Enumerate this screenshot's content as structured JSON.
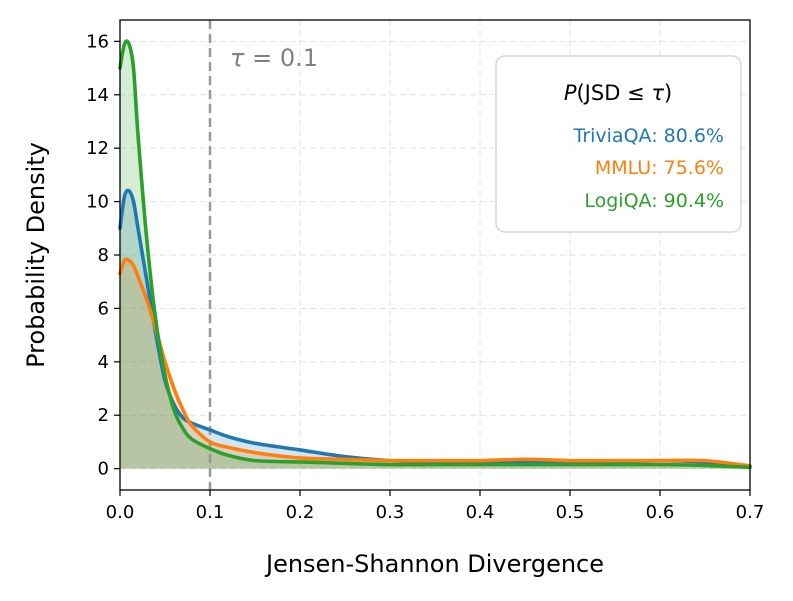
{
  "chart_data": {
    "type": "area",
    "xlabel": "Jensen-Shannon Divergence",
    "ylabel": "Probability Density",
    "xlim": [
      0,
      0.7
    ],
    "ylim": [
      -0.8,
      16.8
    ],
    "xticks": [
      0.0,
      0.1,
      0.2,
      0.3,
      0.4,
      0.5,
      0.6,
      0.7
    ],
    "xtick_labels": [
      "0.0",
      "0.1",
      "0.2",
      "0.3",
      "0.4",
      "0.5",
      "0.6",
      "0.7"
    ],
    "yticks": [
      0,
      2,
      4,
      6,
      8,
      10,
      12,
      14,
      16
    ],
    "ytick_labels": [
      "0",
      "2",
      "4",
      "6",
      "8",
      "10",
      "12",
      "14",
      "16"
    ],
    "grid": true,
    "threshold": {
      "x": 0.1,
      "label_prefix": "τ",
      "label_eq": " = ",
      "label_value": "0.1",
      "color": "#999999"
    },
    "legend": {
      "title_prefix": "P",
      "title_mid": "(JSD ≤ ",
      "title_tau": "τ",
      "title_suffix": ")",
      "placement": "top-right",
      "entries": [
        {
          "label": "TriviaQA: 80.6%",
          "color": "#1f77b4"
        },
        {
          "label": "MMLU: 75.6%",
          "color": "#ff7f0e"
        },
        {
          "label": "LogiQA: 90.4%",
          "color": "#2ca02c"
        }
      ]
    },
    "series": [
      {
        "name": "TriviaQA",
        "color": "#1f77b4",
        "x": [
          0.0,
          0.005,
          0.01,
          0.015,
          0.02,
          0.03,
          0.04,
          0.05,
          0.06,
          0.07,
          0.08,
          0.1,
          0.12,
          0.15,
          0.2,
          0.25,
          0.3,
          0.35,
          0.4,
          0.45,
          0.5,
          0.55,
          0.6,
          0.65,
          0.7
        ],
        "y": [
          9.0,
          10.2,
          10.4,
          10.0,
          9.0,
          7.0,
          5.0,
          3.3,
          2.4,
          1.9,
          1.7,
          1.45,
          1.2,
          0.95,
          0.7,
          0.45,
          0.3,
          0.25,
          0.25,
          0.25,
          0.25,
          0.25,
          0.3,
          0.25,
          0.1
        ]
      },
      {
        "name": "MMLU",
        "color": "#ff7f0e",
        "x": [
          0.0,
          0.005,
          0.01,
          0.015,
          0.02,
          0.03,
          0.04,
          0.05,
          0.06,
          0.07,
          0.08,
          0.1,
          0.12,
          0.15,
          0.2,
          0.25,
          0.3,
          0.35,
          0.4,
          0.45,
          0.5,
          0.55,
          0.6,
          0.65,
          0.7
        ],
        "y": [
          7.3,
          7.8,
          7.8,
          7.6,
          7.2,
          6.3,
          5.2,
          4.0,
          3.0,
          2.2,
          1.6,
          1.0,
          0.8,
          0.6,
          0.4,
          0.35,
          0.3,
          0.3,
          0.3,
          0.35,
          0.3,
          0.3,
          0.3,
          0.3,
          0.1
        ]
      },
      {
        "name": "LogiQA",
        "color": "#2ca02c",
        "x": [
          0.0,
          0.005,
          0.01,
          0.015,
          0.02,
          0.03,
          0.04,
          0.05,
          0.06,
          0.07,
          0.08,
          0.1,
          0.12,
          0.15,
          0.2,
          0.25,
          0.3,
          0.35,
          0.4,
          0.45,
          0.5,
          0.55,
          0.6,
          0.65,
          0.7
        ],
        "y": [
          15.0,
          15.9,
          15.9,
          15.0,
          12.5,
          8.5,
          5.5,
          3.5,
          2.2,
          1.5,
          1.1,
          0.75,
          0.5,
          0.3,
          0.25,
          0.2,
          0.15,
          0.15,
          0.15,
          0.15,
          0.15,
          0.15,
          0.15,
          0.12,
          0.05
        ]
      }
    ]
  }
}
